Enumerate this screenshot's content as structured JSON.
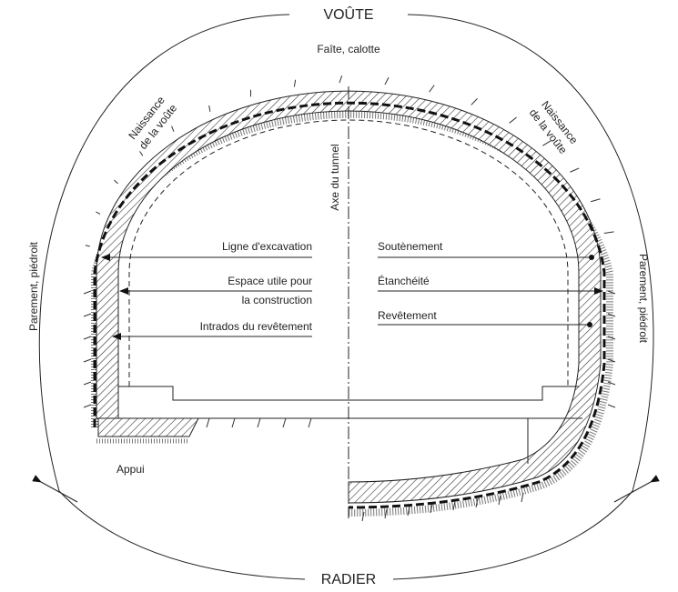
{
  "diagram": {
    "vault": "VOÛTE",
    "invert": "RADIER",
    "crown": "Faîte, calotte",
    "springing_left": [
      "Naissance",
      "de la voûte"
    ],
    "springing_right": [
      "Naissance",
      "de la voûte"
    ],
    "axis": "Axe du tunnel",
    "left_labels": {
      "excavation": "Ligne d'excavation",
      "clearance": [
        "Espace utile pour",
        "la construction"
      ],
      "intrados": "Intrados du revêtement"
    },
    "right_labels": {
      "support": "Soutènement",
      "waterproofing": "Étanchéité",
      "lining": "Revêtement"
    },
    "sidewall_left": "Parement, piédroit",
    "sidewall_right": "Parement, piédroit",
    "footing": "Appui"
  }
}
